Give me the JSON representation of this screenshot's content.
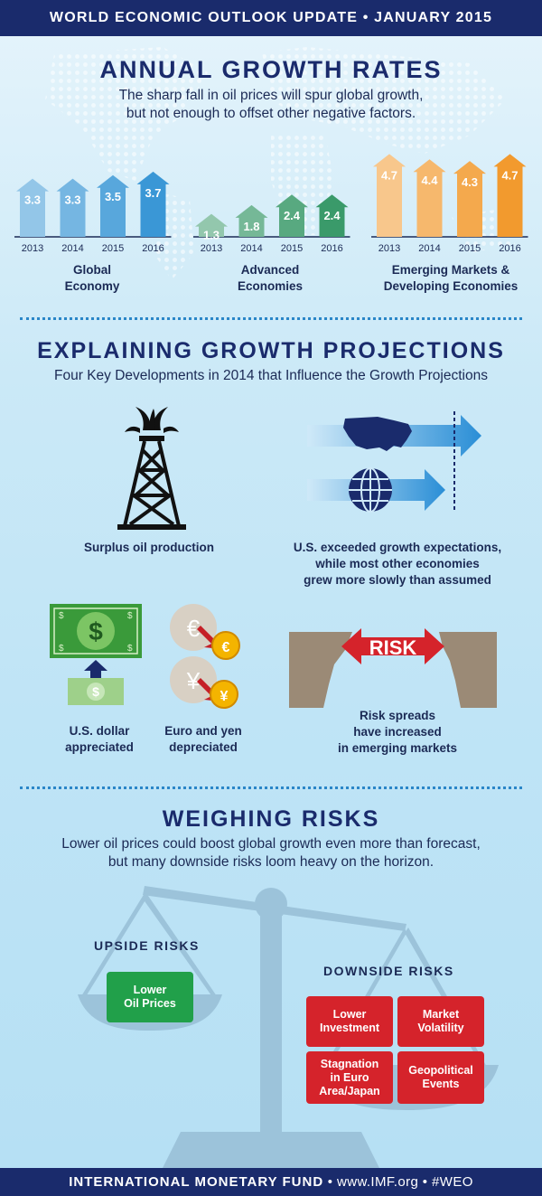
{
  "header": {
    "title": "WORLD ECONOMIC OUTLOOK UPDATE • JANUARY 2015"
  },
  "growth": {
    "title": "ANNUAL GROWTH RATES",
    "subtitle_line1": "The sharp fall in oil prices will spur global growth,",
    "subtitle_line2": "but not enough to offset other negative factors.",
    "chart_data": {
      "type": "bar",
      "categories": [
        "2013",
        "2014",
        "2015",
        "2016"
      ],
      "groups": [
        {
          "name_line1": "Global",
          "name_line2": "Economy",
          "values": [
            3.3,
            3.3,
            3.5,
            3.7
          ],
          "labels": [
            "3.3",
            "3.3",
            "3.5",
            "3.7"
          ],
          "color": "#3a97d6"
        },
        {
          "name_line1": "Advanced",
          "name_line2": "Economies",
          "values": [
            1.3,
            1.8,
            2.4,
            2.4
          ],
          "labels": [
            "1.3",
            "1.8",
            "2.4",
            "2.4"
          ],
          "color": "#3a9a6a"
        },
        {
          "name_line1": "Emerging Markets &",
          "name_line2": "Developing Economies",
          "values": [
            4.7,
            4.4,
            4.3,
            4.7
          ],
          "labels": [
            "4.7",
            "4.4",
            "4.3",
            "4.7"
          ],
          "color": "#f29a2e"
        }
      ]
    }
  },
  "projections": {
    "title": "EXPLAINING GROWTH PROJECTIONS",
    "subtitle": "Four Key Developments in 2014 that Influence the Growth Projections",
    "oil_caption": "Surplus oil production",
    "us_caption_line1": "U.S. exceeded growth expectations,",
    "us_caption_line2": "while most other economies",
    "us_caption_line3": "grew more slowly than assumed",
    "dollar_caption_line1": "U.S. dollar",
    "dollar_caption_line2": "appreciated",
    "euro_caption_line1": "Euro and yen",
    "euro_caption_line2": "depreciated",
    "risk_label": "RISK",
    "risk_caption_line1": "Risk spreads",
    "risk_caption_line2": "have increased",
    "risk_caption_line3": "in emerging markets",
    "dollar_symbol": "$",
    "euro_symbol": "€",
    "yen_symbol": "¥"
  },
  "risks": {
    "title": "WEIGHING RISKS",
    "subtitle_line1": "Lower oil prices could boost global growth even more than forecast,",
    "subtitle_line2": "but many downside risks loom heavy on the horizon.",
    "upside_title": "UPSIDE RISKS",
    "upside_items": [
      {
        "line1": "Lower",
        "line2": "Oil Prices"
      }
    ],
    "downside_title": "DOWNSIDE RISKS",
    "downside_items": [
      {
        "line1": "Lower",
        "line2": "Investment",
        "line3": ""
      },
      {
        "line1": "Market",
        "line2": "Volatility",
        "line3": ""
      },
      {
        "line1": "Stagnation",
        "line2": "in Euro",
        "line3": "Area/Japan"
      },
      {
        "line1": "Geopolitical",
        "line2": "Events",
        "line3": ""
      }
    ],
    "upside_color": "#21a04a",
    "downside_color": "#d5232b"
  },
  "footer": {
    "org": "INTERNATIONAL MONETARY FUND",
    "sep1": " • ",
    "site": "www.IMF.org",
    "sep2": " • ",
    "tag": "#WEO"
  }
}
